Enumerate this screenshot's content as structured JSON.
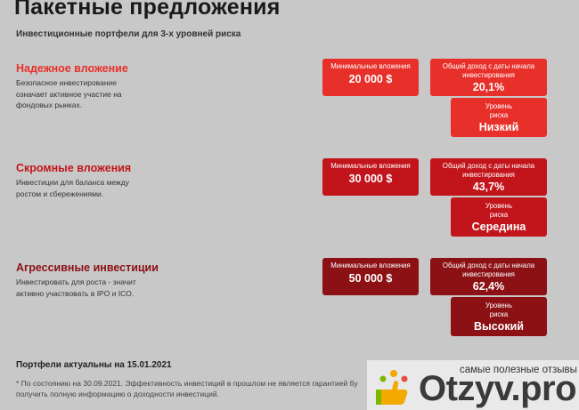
{
  "header": {
    "title": "Пакетные предложения",
    "subtitle": "Инвестиционные портфели для 3-х уровней риска"
  },
  "labels": {
    "min": "Минимальные вложения",
    "income": "Общий доход с даты начала инвестирования",
    "risk": "Уровень риска"
  },
  "packages": [
    {
      "name": "Надежное вложение",
      "desc": "Безопасное инвестирование означает активное участие на фондовых рынках.",
      "min": "20 000 $",
      "income": "20,1%",
      "risk": "Низкий",
      "color": "#e8302a"
    },
    {
      "name": "Скромные вложения",
      "desc": "Инвестиции для баланса между ростом и сбережениями.",
      "min": "30 000 $",
      "income": "43,7%",
      "risk": "Середина",
      "color": "#c2151b"
    },
    {
      "name": "Агрессивные инвестиции",
      "desc": "Инвестировать для роста - значит активно участвовать в IPO и ICO.",
      "min": "50 000 $",
      "income": "62,4%",
      "risk": "Высокий",
      "color": "#8c1115"
    }
  ],
  "footer": {
    "actual": "Портфели актуальны на 15.01.2021",
    "note": "* По состоянию на 30.09.2021. Эффективность инвестиций в прошлом не является гарантией бу получить полную информацию о доходности инвестиций."
  },
  "watermark": {
    "tagline": "самые полезные отзывы",
    "logo": "Otzyv.pro"
  }
}
